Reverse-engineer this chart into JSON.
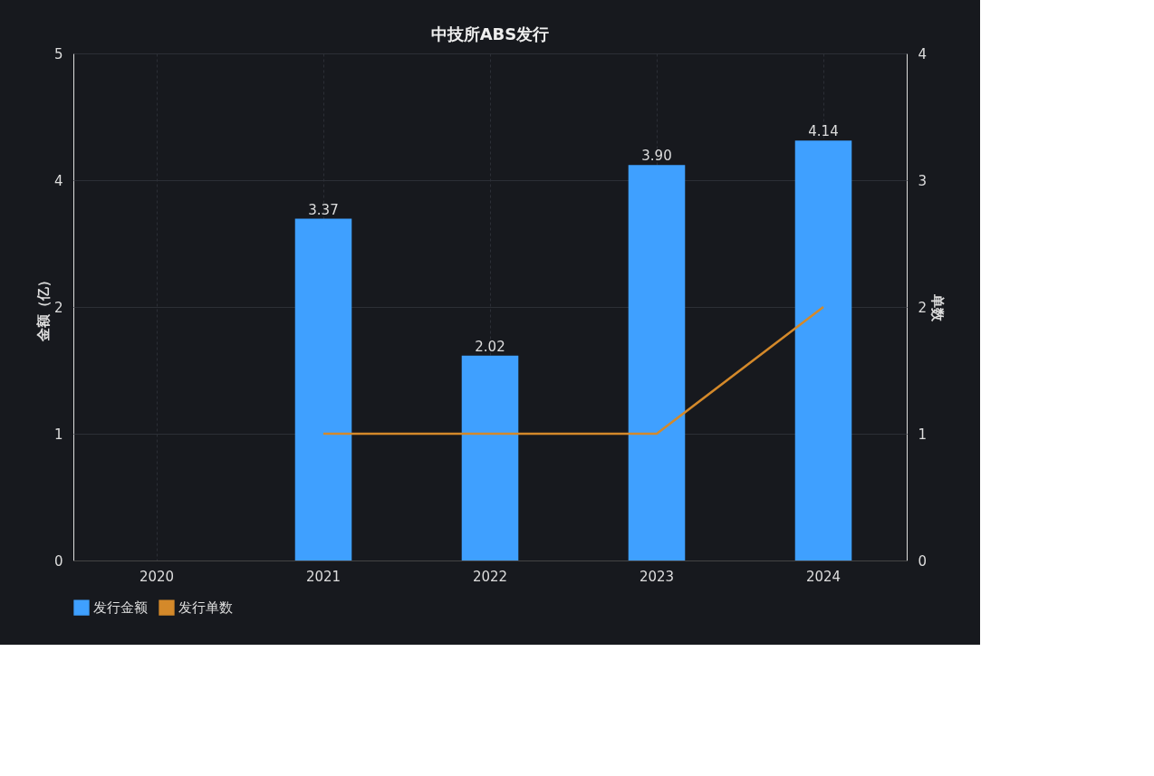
{
  "chart_data": {
    "type": "bar",
    "title": "中技所ABS发行",
    "ylabel": "金额（亿）",
    "y2label": "单数",
    "categories": [
      "2020",
      "2021",
      "2022",
      "2023",
      "2024"
    ],
    "series": [
      {
        "name": "发行金额",
        "color": "#3fa0ff",
        "values": [
          null,
          3.37,
          2.02,
          3.9,
          4.14
        ],
        "value_labels": [
          null,
          "3.37",
          "2.02",
          "3.90",
          "4.14"
        ]
      },
      {
        "name": "发行单数",
        "type": "line",
        "axis": "y2",
        "color": "#d4892a",
        "values": [
          null,
          1,
          1,
          1,
          2
        ]
      }
    ],
    "ylim": [
      0,
      5
    ],
    "yticks": [
      0,
      {
        "value": 1.25,
        "label": "1"
      },
      {
        "value": 2.5,
        "label": "2"
      },
      {
        "value": 3.75,
        "label": "4"
      },
      5
    ],
    "y2lim": [
      0,
      4
    ],
    "y2ticks": [
      0,
      1,
      2,
      3,
      4
    ],
    "grid": true,
    "legend": "bottom",
    "marker": "none",
    "line_style": "solid"
  }
}
